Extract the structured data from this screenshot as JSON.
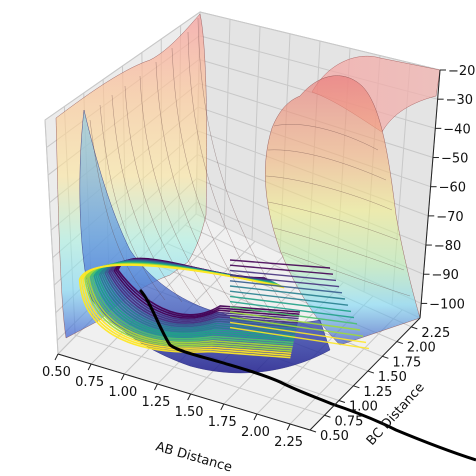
{
  "chart_data": {
    "type": "surface3d",
    "title": "",
    "xlabel": "AB Distance",
    "ylabel": "BC Distance",
    "zlabel": "",
    "xticks": [
      "0.50",
      "0.75",
      "1.00",
      "1.25",
      "1.50",
      "1.75",
      "2.00",
      "2.25"
    ],
    "yticks": [
      "0.50",
      "0.75",
      "1.00",
      "1.25",
      "1.50",
      "1.75",
      "2.00",
      "2.25"
    ],
    "zticks": [
      "−20",
      "−30",
      "−40",
      "−50",
      "−60",
      "−70",
      "−80",
      "−90",
      "−100"
    ],
    "xlim": [
      0.5,
      2.4
    ],
    "ylim": [
      0.5,
      2.4
    ],
    "zlim": [
      -105,
      -20
    ],
    "grid": true,
    "surface_colormap": "jet (semi-transparent)",
    "contour_colormap": "viridis",
    "trajectory_color": "#000000",
    "pane_color": "#f2f2f2"
  }
}
